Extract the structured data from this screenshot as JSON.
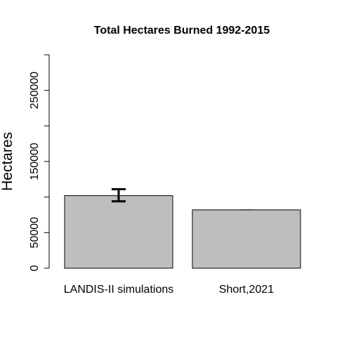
{
  "chart_data": {
    "type": "bar",
    "title": "Total Hectares Burned 1992-2015",
    "xlabel": "",
    "ylabel": "Hectares",
    "categories": [
      "LANDIS-II simulations",
      "Short,2021"
    ],
    "values": [
      102000,
      82000
    ],
    "error_low": [
      94000,
      82000
    ],
    "error_high": [
      111000,
      82000
    ],
    "ylim": [
      0,
      300000
    ],
    "y_ticks": [
      0,
      50000,
      100000,
      150000,
      200000,
      250000,
      300000
    ],
    "y_tick_labels": [
      "0",
      "50000",
      "",
      "150000",
      "",
      "250000",
      ""
    ],
    "bar_color": "#bebebe",
    "bar_border_color": "#000000",
    "grid": false,
    "legend": "none"
  }
}
